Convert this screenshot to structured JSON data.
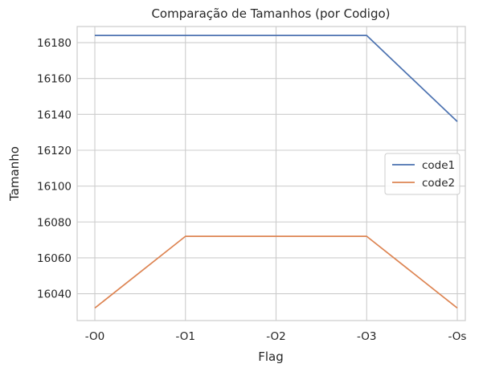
{
  "chart_data": {
    "type": "line",
    "title": "Comparação de Tamanhos (por Codigo)",
    "xlabel": "Flag",
    "ylabel": "Tamanho",
    "categories": [
      "-O0",
      "-O1",
      "-O2",
      "-O3",
      "-Os"
    ],
    "ylim": [
      16025,
      16189
    ],
    "yticks": [
      16040,
      16060,
      16080,
      16100,
      16120,
      16140,
      16160,
      16180
    ],
    "grid": true,
    "legend_position": "center-right",
    "series": [
      {
        "name": "code1",
        "color": "#4c72b0",
        "values": [
          16184,
          16184,
          16184,
          16184,
          16136
        ]
      },
      {
        "name": "code2",
        "color": "#dd8452",
        "values": [
          16032,
          16072,
          16072,
          16072,
          16032
        ]
      }
    ]
  }
}
